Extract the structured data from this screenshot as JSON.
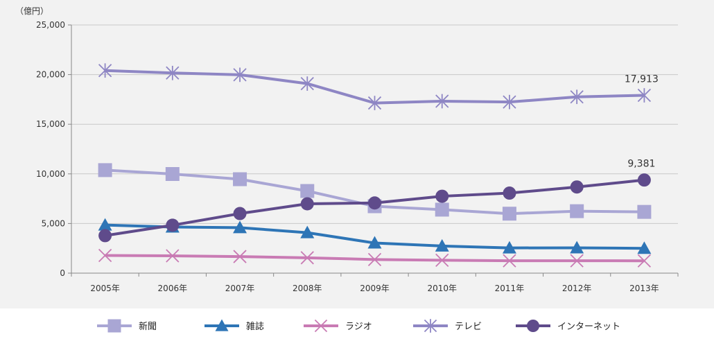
{
  "chart_data": {
    "type": "line",
    "unit_label": "（億円）",
    "x": [
      "2005年",
      "2006年",
      "2007年",
      "2008年",
      "2009年",
      "2010年",
      "2011年",
      "2012年",
      "2013年"
    ],
    "ylim": [
      0,
      25000
    ],
    "yticks": [
      {
        "value": 0,
        "label": "0"
      },
      {
        "value": 5000,
        "label": "5,000"
      },
      {
        "value": 10000,
        "label": "10,000"
      },
      {
        "value": 15000,
        "label": "15,000"
      },
      {
        "value": 20000,
        "label": "20,000"
      },
      {
        "value": 25000,
        "label": "25,000"
      }
    ],
    "grid": "horizontal",
    "legend_position": "bottom",
    "series": [
      {
        "name": "新聞",
        "marker": "square",
        "color": "#a9a6d4",
        "values": [
          10377,
          9986,
          9462,
          8276,
          6739,
          6396,
          5990,
          6242,
          6170
        ]
      },
      {
        "name": "雑誌",
        "marker": "triangle",
        "color": "#2e75b6",
        "values": [
          4842,
          4645,
          4585,
          4078,
          3034,
          2733,
          2542,
          2551,
          2499
        ]
      },
      {
        "name": "ラジオ",
        "marker": "x",
        "color": "#c97bb4",
        "values": [
          1778,
          1744,
          1671,
          1549,
          1370,
          1299,
          1247,
          1246,
          1243
        ]
      },
      {
        "name": "テレビ",
        "marker": "asterisk",
        "color": "#8e86c4",
        "values": [
          20411,
          20161,
          19981,
          19092,
          17139,
          17321,
          17237,
          17757,
          17913
        ]
      },
      {
        "name": "インターネット",
        "marker": "circle",
        "color": "#5f4b8b",
        "values": [
          3777,
          4826,
          6003,
          6983,
          7069,
          7747,
          8062,
          8680,
          9381
        ]
      }
    ],
    "annotations": [
      {
        "series": "テレビ",
        "index": 8,
        "text": "17,913"
      },
      {
        "series": "インターネット",
        "index": 8,
        "text": "9,381"
      }
    ]
  }
}
